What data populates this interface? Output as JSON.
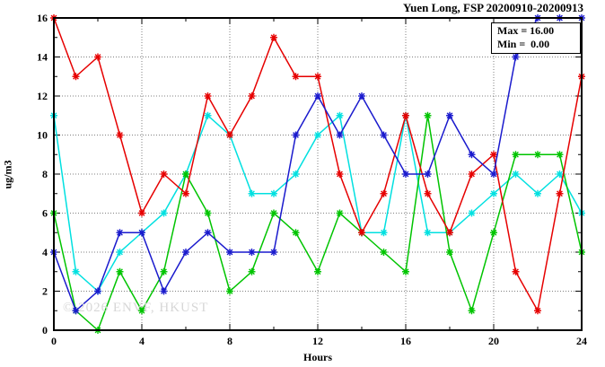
{
  "chart_data": {
    "type": "line",
    "title": "Yuen Long, FSP 20200910-20200913",
    "xlabel": "Hours",
    "ylabel": "ug/m3",
    "xlim": [
      0,
      24
    ],
    "ylim": [
      0,
      16
    ],
    "xticks": [
      0,
      4,
      8,
      12,
      16,
      20,
      24
    ],
    "x_minor_step": 2,
    "yticks": [
      0,
      2,
      4,
      6,
      8,
      10,
      12,
      14,
      16
    ],
    "y_minor_step": 1,
    "grid": "dotted",
    "legend_position": "top-right-inside-box",
    "x": [
      0,
      1,
      2,
      3,
      4,
      5,
      6,
      7,
      8,
      9,
      10,
      11,
      12,
      13,
      14,
      15,
      16,
      17,
      18,
      19,
      20,
      21,
      22,
      23,
      24
    ],
    "series": [
      {
        "name": "series-cyan",
        "color": "#00e0e0",
        "values": [
          11,
          3,
          2,
          4,
          5,
          6,
          8,
          11,
          10,
          7,
          7,
          8,
          10,
          11,
          5,
          5,
          11,
          5,
          5,
          6,
          7,
          8,
          7,
          8,
          6
        ]
      },
      {
        "name": "series-green",
        "color": "#00c400",
        "values": [
          6,
          1,
          0,
          3,
          1,
          3,
          8,
          6,
          2,
          3,
          6,
          5,
          3,
          6,
          5,
          4,
          3,
          11,
          4,
          1,
          5,
          9,
          9,
          9,
          4
        ]
      },
      {
        "name": "series-red",
        "color": "#e60000",
        "values": [
          16,
          13,
          14,
          10,
          6,
          8,
          7,
          12,
          10,
          12,
          15,
          13,
          13,
          8,
          5,
          7,
          11,
          7,
          5,
          8,
          9,
          3,
          1,
          7,
          13
        ]
      },
      {
        "name": "series-blue",
        "color": "#1a1acd",
        "values": [
          4,
          1,
          2,
          5,
          5,
          2,
          4,
          5,
          4,
          4,
          4,
          10,
          12,
          10,
          12,
          10,
          8,
          8,
          11,
          9,
          8,
          14,
          16,
          16,
          16
        ]
      }
    ],
    "annotations": {
      "max_label": "Max = 16.00",
      "min_label": "Min =  0.00"
    },
    "watermark": "© 2026 ENVF, HKUST",
    "axis_color": "#000000",
    "grid_color": "#808080",
    "background": "#ffffff"
  }
}
